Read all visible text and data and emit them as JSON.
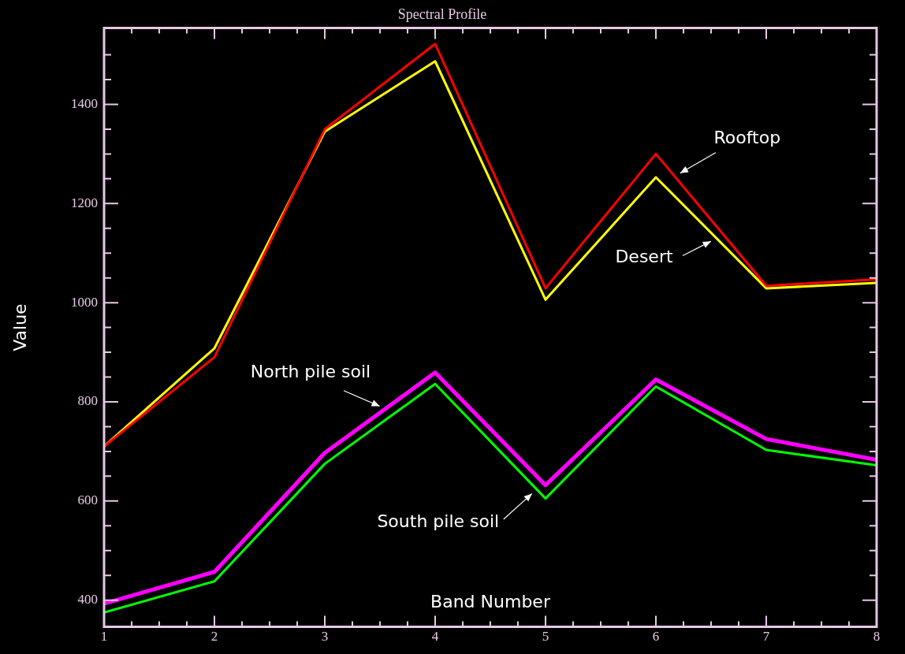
{
  "chart_data": {
    "type": "line",
    "title": "Spectral Profile",
    "xlabel": "Band Number",
    "ylabel": "Value",
    "x": [
      1,
      2,
      3,
      4,
      5,
      6,
      7,
      8
    ],
    "series": [
      {
        "name": "Rooftop",
        "color": "#ff0000",
        "values": [
          710,
          890,
          1350,
          1522,
          1029,
          1300,
          1034,
          1047
        ]
      },
      {
        "name": "Desert",
        "color": "#ffff00",
        "values": [
          710,
          908,
          1345,
          1487,
          1006,
          1253,
          1029,
          1040
        ]
      },
      {
        "name": "North pile soil",
        "color": "#ff00ff",
        "values": [
          393,
          457,
          697,
          859,
          632,
          845,
          725,
          683
        ]
      },
      {
        "name": "South pile soil",
        "color": "#00ff00",
        "values": [
          375,
          438,
          675,
          836,
          605,
          831,
          703,
          672
        ]
      }
    ],
    "xlim": [
      1,
      8
    ],
    "xticks": [
      1,
      {
        "value": 1.25,
        "label": null
      },
      {
        "value": 1.5,
        "label": null
      },
      {
        "value": 1.75,
        "label": null
      },
      2,
      {
        "value": 2.25,
        "label": null
      },
      {
        "value": 2.5,
        "label": null
      },
      {
        "value": 2.75,
        "label": null
      },
      3,
      {
        "value": 3.25,
        "label": null
      },
      {
        "value": 3.5,
        "label": null
      },
      {
        "value": 3.75,
        "label": null
      },
      4,
      {
        "value": 4.25,
        "label": null
      },
      {
        "value": 4.5,
        "label": null
      },
      {
        "value": 4.75,
        "label": null
      },
      5,
      {
        "value": 5.25,
        "label": null
      },
      {
        "value": 5.5,
        "label": null
      },
      {
        "value": 5.75,
        "label": null
      },
      6,
      {
        "value": 6.25,
        "label": null
      },
      {
        "value": 6.5,
        "label": null
      },
      {
        "value": 6.75,
        "label": null
      },
      7,
      {
        "value": 7.25,
        "label": null
      },
      {
        "value": 7.5,
        "label": null
      },
      {
        "value": 7.75,
        "label": null
      },
      8
    ],
    "ylim": [
      346,
      1554
    ],
    "yticks": [
      400,
      {
        "value": 450,
        "label": null
      },
      {
        "value": 500,
        "label": null
      },
      {
        "value": 550,
        "label": null
      },
      600,
      {
        "value": 650,
        "label": null
      },
      {
        "value": 700,
        "label": null
      },
      {
        "value": 750,
        "label": null
      },
      800,
      {
        "value": 850,
        "label": null
      },
      {
        "value": 900,
        "label": null
      },
      {
        "value": 950,
        "label": null
      },
      1000,
      {
        "value": 1050,
        "label": null
      },
      {
        "value": 1100,
        "label": null
      },
      {
        "value": 1150,
        "label": null
      },
      1200,
      {
        "value": 1250,
        "label": null
      },
      {
        "value": 1300,
        "label": null
      },
      {
        "value": 1350,
        "label": null
      },
      1400,
      {
        "value": 1450,
        "label": null
      },
      {
        "value": 1500,
        "label": null
      }
    ],
    "grid": false,
    "legend": false,
    "marker": "none",
    "line_style": "solid"
  }
}
